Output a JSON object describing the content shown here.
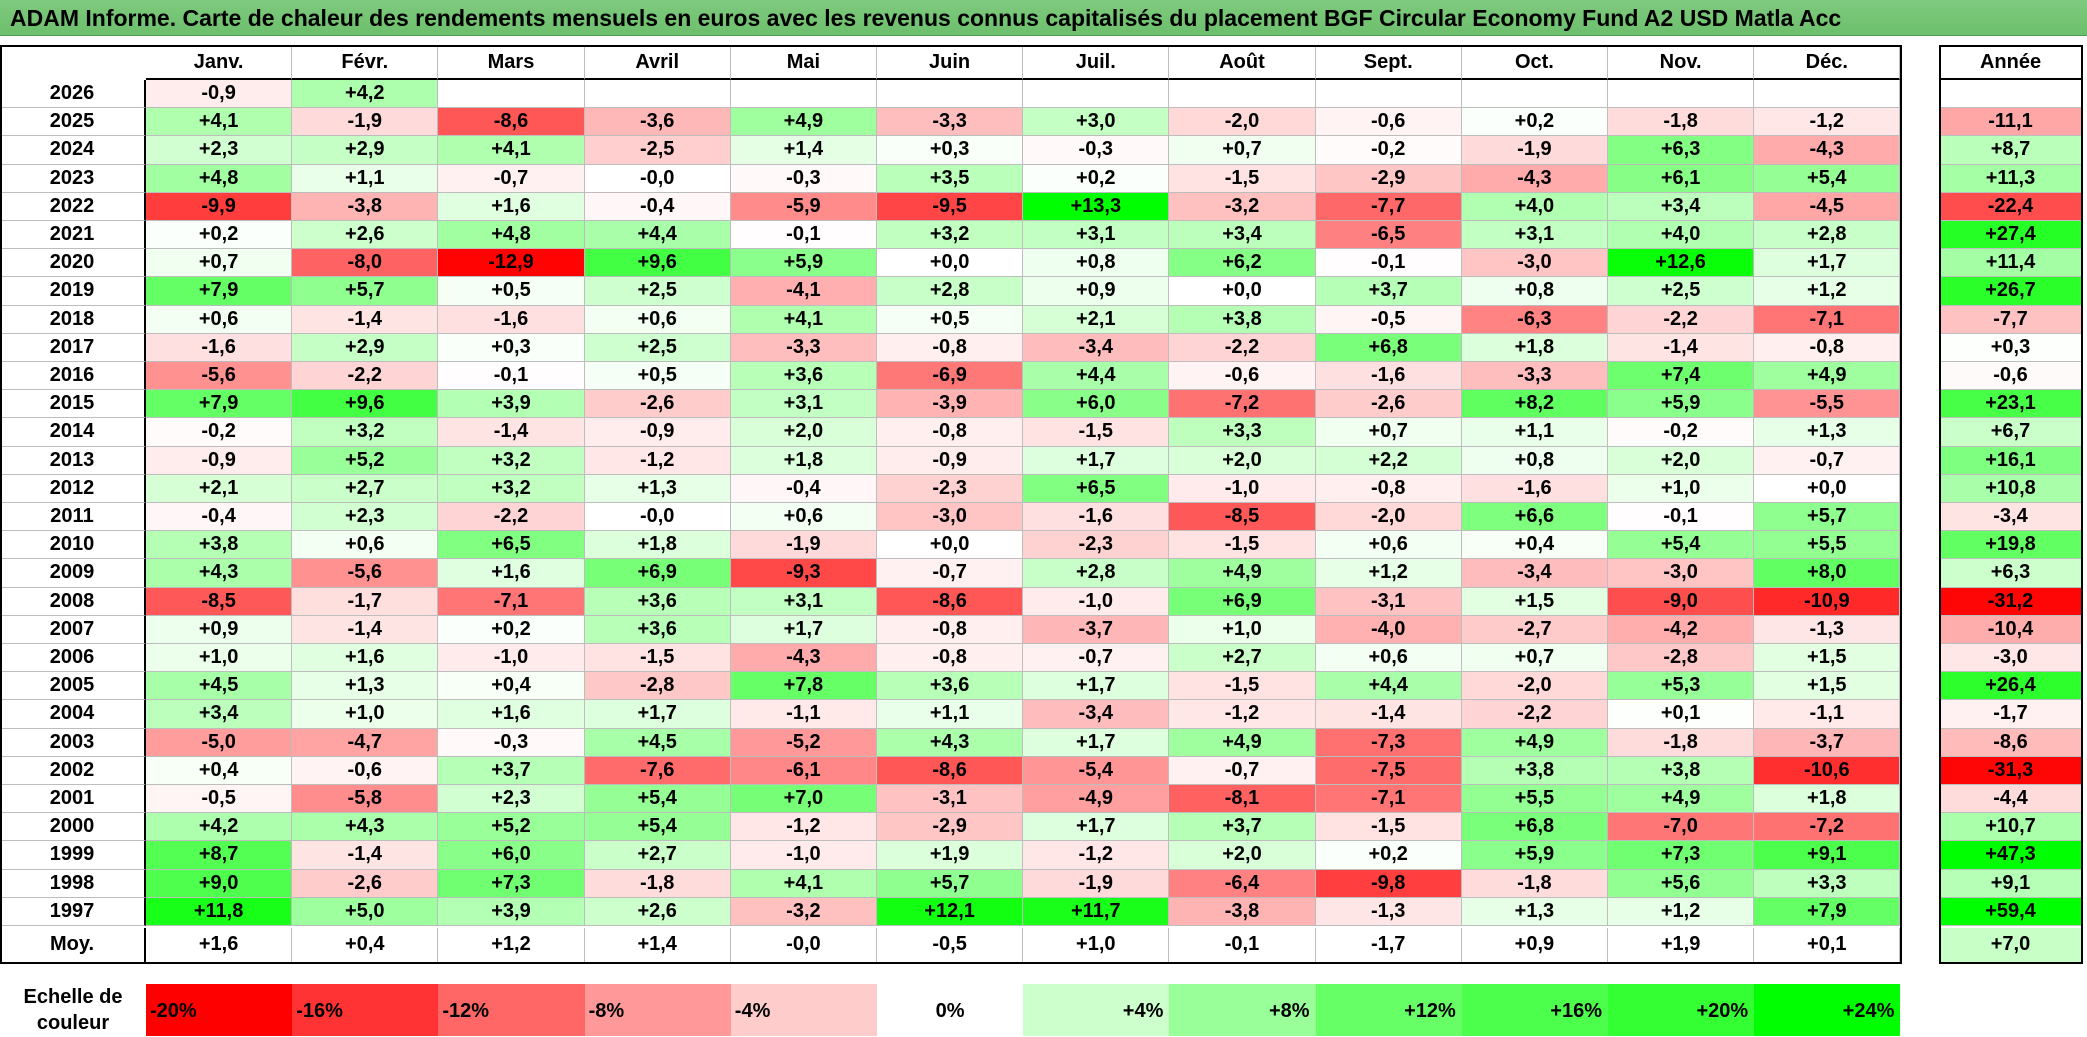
{
  "title": "ADAM Informe. Carte de chaleur des rendements mensuels en euros avec les revenus connus capitalisés du placement BGF Circular Economy Fund A2 USD Matla Acc",
  "chart_data": {
    "type": "heatmap",
    "title": "ADAM Informe. Carte de chaleur des rendements mensuels en euros avec les revenus connus capitalisés du placement BGF Circular Economy Fund A2 USD Matla Acc",
    "columns": [
      "Janv.",
      "Févr.",
      "Mars",
      "Avril",
      "Mai",
      "Juin",
      "Juil.",
      "Août",
      "Sept.",
      "Oct.",
      "Nov.",
      "Déc."
    ],
    "annual_label": "Année",
    "rows": [
      {
        "year": "2026",
        "months": [
          "-0,9",
          "+4,2",
          "",
          "",
          "",
          "",
          "",
          "",
          "",
          "",
          "",
          ""
        ],
        "annual": ""
      },
      {
        "year": "2025",
        "months": [
          "+4,1",
          "-1,9",
          "-8,6",
          "-3,6",
          "+4,9",
          "-3,3",
          "+3,0",
          "-2,0",
          "-0,6",
          "+0,2",
          "-1,8",
          "-1,2"
        ],
        "annual": "-11,1"
      },
      {
        "year": "2024",
        "months": [
          "+2,3",
          "+2,9",
          "+4,1",
          "-2,5",
          "+1,4",
          "+0,3",
          "-0,3",
          "+0,7",
          "-0,2",
          "-1,9",
          "+6,3",
          "-4,3"
        ],
        "annual": "+8,7"
      },
      {
        "year": "2023",
        "months": [
          "+4,8",
          "+1,1",
          "-0,7",
          "-0,0",
          "-0,3",
          "+3,5",
          "+0,2",
          "-1,5",
          "-2,9",
          "-4,3",
          "+6,1",
          "+5,4"
        ],
        "annual": "+11,3"
      },
      {
        "year": "2022",
        "months": [
          "-9,9",
          "-3,8",
          "+1,6",
          "-0,4",
          "-5,9",
          "-9,5",
          "+13,3",
          "-3,2",
          "-7,7",
          "+4,0",
          "+3,4",
          "-4,5"
        ],
        "annual": "-22,4"
      },
      {
        "year": "2021",
        "months": [
          "+0,2",
          "+2,6",
          "+4,8",
          "+4,4",
          "-0,1",
          "+3,2",
          "+3,1",
          "+3,4",
          "-6,5",
          "+3,1",
          "+4,0",
          "+2,8"
        ],
        "annual": "+27,4"
      },
      {
        "year": "2020",
        "months": [
          "+0,7",
          "-8,0",
          "-12,9",
          "+9,6",
          "+5,9",
          "+0,0",
          "+0,8",
          "+6,2",
          "-0,1",
          "-3,0",
          "+12,6",
          "+1,7"
        ],
        "annual": "+11,4"
      },
      {
        "year": "2019",
        "months": [
          "+7,9",
          "+5,7",
          "+0,5",
          "+2,5",
          "-4,1",
          "+2,8",
          "+0,9",
          "+0,0",
          "+3,7",
          "+0,8",
          "+2,5",
          "+1,2"
        ],
        "annual": "+26,7"
      },
      {
        "year": "2018",
        "months": [
          "+0,6",
          "-1,4",
          "-1,6",
          "+0,6",
          "+4,1",
          "+0,5",
          "+2,1",
          "+3,8",
          "-0,5",
          "-6,3",
          "-2,2",
          "-7,1"
        ],
        "annual": "-7,7"
      },
      {
        "year": "2017",
        "months": [
          "-1,6",
          "+2,9",
          "+0,3",
          "+2,5",
          "-3,3",
          "-0,8",
          "-3,4",
          "-2,2",
          "+6,8",
          "+1,8",
          "-1,4",
          "-0,8"
        ],
        "annual": "+0,3"
      },
      {
        "year": "2016",
        "months": [
          "-5,6",
          "-2,2",
          "-0,1",
          "+0,5",
          "+3,6",
          "-6,9",
          "+4,4",
          "-0,6",
          "-1,6",
          "-3,3",
          "+7,4",
          "+4,9"
        ],
        "annual": "-0,6"
      },
      {
        "year": "2015",
        "months": [
          "+7,9",
          "+9,6",
          "+3,9",
          "-2,6",
          "+3,1",
          "-3,9",
          "+6,0",
          "-7,2",
          "-2,6",
          "+8,2",
          "+5,9",
          "-5,5"
        ],
        "annual": "+23,1"
      },
      {
        "year": "2014",
        "months": [
          "-0,2",
          "+3,2",
          "-1,4",
          "-0,9",
          "+2,0",
          "-0,8",
          "-1,5",
          "+3,3",
          "+0,7",
          "+1,1",
          "-0,2",
          "+1,3"
        ],
        "annual": "+6,7"
      },
      {
        "year": "2013",
        "months": [
          "-0,9",
          "+5,2",
          "+3,2",
          "-1,2",
          "+1,8",
          "-0,9",
          "+1,7",
          "+2,0",
          "+2,2",
          "+0,8",
          "+2,0",
          "-0,7"
        ],
        "annual": "+16,1"
      },
      {
        "year": "2012",
        "months": [
          "+2,1",
          "+2,7",
          "+3,2",
          "+1,3",
          "-0,4",
          "-2,3",
          "+6,5",
          "-1,0",
          "-0,8",
          "-1,6",
          "+1,0",
          "+0,0"
        ],
        "annual": "+10,8"
      },
      {
        "year": "2011",
        "months": [
          "-0,4",
          "+2,3",
          "-2,2",
          "-0,0",
          "+0,6",
          "-3,0",
          "-1,6",
          "-8,5",
          "-2,0",
          "+6,6",
          "-0,1",
          "+5,7"
        ],
        "annual": "-3,4"
      },
      {
        "year": "2010",
        "months": [
          "+3,8",
          "+0,6",
          "+6,5",
          "+1,8",
          "-1,9",
          "+0,0",
          "-2,3",
          "-1,5",
          "+0,6",
          "+0,4",
          "+5,4",
          "+5,5"
        ],
        "annual": "+19,8"
      },
      {
        "year": "2009",
        "months": [
          "+4,3",
          "-5,6",
          "+1,6",
          "+6,9",
          "-9,3",
          "-0,7",
          "+2,8",
          "+4,9",
          "+1,2",
          "-3,4",
          "-3,0",
          "+8,0"
        ],
        "annual": "+6,3"
      },
      {
        "year": "2008",
        "months": [
          "-8,5",
          "-1,7",
          "-7,1",
          "+3,6",
          "+3,1",
          "-8,6",
          "-1,0",
          "+6,9",
          "-3,1",
          "+1,5",
          "-9,0",
          "-10,9"
        ],
        "annual": "-31,2"
      },
      {
        "year": "2007",
        "months": [
          "+0,9",
          "-1,4",
          "+0,2",
          "+3,6",
          "+1,7",
          "-0,8",
          "-3,7",
          "+1,0",
          "-4,0",
          "-2,7",
          "-4,2",
          "-1,3"
        ],
        "annual": "-10,4"
      },
      {
        "year": "2006",
        "months": [
          "+1,0",
          "+1,6",
          "-1,0",
          "-1,5",
          "-4,3",
          "-0,8",
          "-0,7",
          "+2,7",
          "+0,6",
          "+0,7",
          "-2,8",
          "+1,5"
        ],
        "annual": "-3,0"
      },
      {
        "year": "2005",
        "months": [
          "+4,5",
          "+1,3",
          "+0,4",
          "-2,8",
          "+7,8",
          "+3,6",
          "+1,7",
          "-1,5",
          "+4,4",
          "-2,0",
          "+5,3",
          "+1,5"
        ],
        "annual": "+26,4"
      },
      {
        "year": "2004",
        "months": [
          "+3,4",
          "+1,0",
          "+1,6",
          "+1,7",
          "-1,1",
          "+1,1",
          "-3,4",
          "-1,2",
          "-1,4",
          "-2,2",
          "+0,1",
          "-1,1"
        ],
        "annual": "-1,7"
      },
      {
        "year": "2003",
        "months": [
          "-5,0",
          "-4,7",
          "-0,3",
          "+4,5",
          "-5,2",
          "+4,3",
          "+1,7",
          "+4,9",
          "-7,3",
          "+4,9",
          "-1,8",
          "-3,7"
        ],
        "annual": "-8,6"
      },
      {
        "year": "2002",
        "months": [
          "+0,4",
          "-0,6",
          "+3,7",
          "-7,6",
          "-6,1",
          "-8,6",
          "-5,4",
          "-0,7",
          "-7,5",
          "+3,8",
          "+3,8",
          "-10,6"
        ],
        "annual": "-31,3"
      },
      {
        "year": "2001",
        "months": [
          "-0,5",
          "-5,8",
          "+2,3",
          "+5,4",
          "+7,0",
          "-3,1",
          "-4,9",
          "-8,1",
          "-7,1",
          "+5,5",
          "+4,9",
          "+1,8"
        ],
        "annual": "-4,4"
      },
      {
        "year": "2000",
        "months": [
          "+4,2",
          "+4,3",
          "+5,2",
          "+5,4",
          "-1,2",
          "-2,9",
          "+1,7",
          "+3,7",
          "-1,5",
          "+6,8",
          "-7,0",
          "-7,2"
        ],
        "annual": "+10,7"
      },
      {
        "year": "1999",
        "months": [
          "+8,7",
          "-1,4",
          "+6,0",
          "+2,7",
          "-1,0",
          "+1,9",
          "-1,2",
          "+2,0",
          "+0,2",
          "+5,9",
          "+7,3",
          "+9,1"
        ],
        "annual": "+47,3"
      },
      {
        "year": "1998",
        "months": [
          "+9,0",
          "-2,6",
          "+7,3",
          "-1,8",
          "+4,1",
          "+5,7",
          "-1,9",
          "-6,4",
          "-9,8",
          "-1,8",
          "+5,6",
          "+3,3"
        ],
        "annual": "+9,1"
      },
      {
        "year": "1997",
        "months": [
          "+11,8",
          "+5,0",
          "+3,9",
          "+2,6",
          "-3,2",
          "+12,1",
          "+11,7",
          "-3,8",
          "-1,3",
          "+1,3",
          "+1,2",
          "+7,9"
        ],
        "annual": "+59,4"
      }
    ],
    "average": {
      "label": "Moy.",
      "months": [
        "+1,6",
        "+0,4",
        "+1,2",
        "+1,4",
        "-0,0",
        "-0,5",
        "+1,0",
        "-0,1",
        "-1,7",
        "+0,9",
        "+1,9",
        "+0,1"
      ],
      "annual": "+7,0"
    },
    "scale": {
      "label_line1": "Echelle de",
      "label_line2": "couleur",
      "stops": [
        {
          "label": "-20%",
          "value": -20,
          "color": "#ff0000",
          "align": "left"
        },
        {
          "label": "-16%",
          "value": -16,
          "color": "#ff3333",
          "align": "left"
        },
        {
          "label": "-12%",
          "value": -12,
          "color": "#ff6666",
          "align": "left"
        },
        {
          "label": "-8%",
          "value": -8,
          "color": "#ff9999",
          "align": "left"
        },
        {
          "label": "-4%",
          "value": -4,
          "color": "#ffcccc",
          "align": "left"
        },
        {
          "label": "0%",
          "value": 0,
          "color": "#ffffff",
          "align": "center"
        },
        {
          "label": "+4%",
          "value": 4,
          "color": "#ccffcc",
          "align": "right"
        },
        {
          "label": "+8%",
          "value": 8,
          "color": "#99ff99",
          "align": "right"
        },
        {
          "label": "+12%",
          "value": 12,
          "color": "#66ff66",
          "align": "right"
        },
        {
          "label": "+16%",
          "value": 16,
          "color": "#4dff4d",
          "align": "right"
        },
        {
          "label": "+20%",
          "value": 20,
          "color": "#33ff33",
          "align": "right"
        },
        {
          "label": "+24%",
          "value": 24,
          "color": "#00ff00",
          "align": "right"
        }
      ]
    }
  }
}
